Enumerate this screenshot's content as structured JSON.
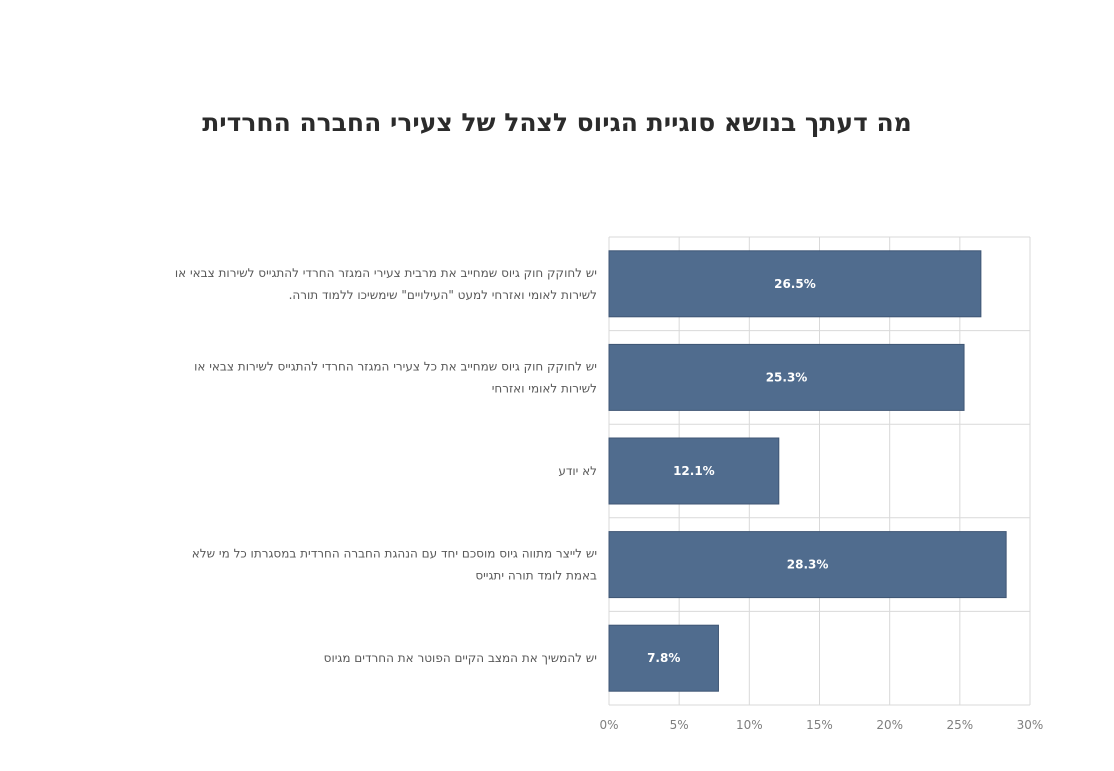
{
  "chart_data": {
    "type": "bar",
    "orientation": "horizontal",
    "title": "מה דעתך בנושא סוגיית הגיוס לצהל של צעירי החברה החרדית",
    "categories": [
      [
        "יש לחוקק חוק גיוס שמחייב את מרבית צעירי המגזר החרדי להתגייס לשירות צבאי או",
        "לשירות לאומי ואזרחי למעט \"העילויים\" שימשיכו ללמוד תורה."
      ],
      [
        "יש לחוקק חוק גיוס שמחייב את כל צעירי המגזר החרדי להתגייס לשירות צבאי או",
        "לשירות לאומי ואזרחי"
      ],
      [
        "לא יודע"
      ],
      [
        "יש לייצר מתווה גיוס מוסכם יחד עם הנהגת החברה החרדית במסגרתו כל מי שלא",
        "באמת לומד תורה יתגייס"
      ],
      [
        "יש להמשיך את המצב הקיים הפוטר את החרדים מגיוס"
      ]
    ],
    "values": [
      26.5,
      25.3,
      12.1,
      28.3,
      7.8
    ],
    "value_labels": [
      "26.5%",
      "25.3%",
      "12.1%",
      "28.3%",
      "7.8%"
    ],
    "xlim": [
      0,
      30
    ],
    "xticks": [
      "0%",
      "5%",
      "10%",
      "15%",
      "20%",
      "25%",
      "30%"
    ],
    "grid": true,
    "bar_color": "#506c8e",
    "bar_border_color": "#3f5674",
    "label_color": "#595959",
    "tick_color": "#7f7f7f",
    "grid_color": "#d9d9d9"
  }
}
